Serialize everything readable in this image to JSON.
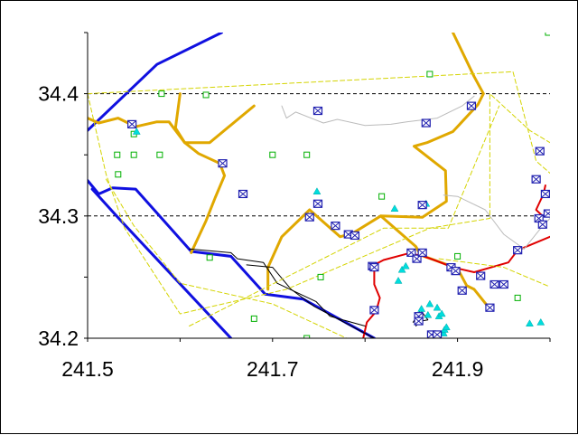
{
  "chart_data": {
    "type": "scatter",
    "title": "",
    "xlabel": "",
    "ylabel": "",
    "xlim": [
      241.5,
      242.0
    ],
    "ylim": [
      34.2,
      34.45
    ],
    "x_ticks": [
      241.5,
      241.7,
      241.9
    ],
    "x_tick_labels": [
      "241.5",
      "241.7",
      "241.9"
    ],
    "y_ticks": [
      34.2,
      34.3,
      34.4
    ],
    "y_tick_labels": [
      "34.2",
      "34.3",
      "34.4"
    ],
    "grid": "dashed at 34.3 and 34.4",
    "colors": {
      "blue_line": "#1010e0",
      "orange_line": "#e0a800",
      "red_line": "#e00000",
      "yellow_dash": "#d4d400",
      "gray_line": "#bbbbbb",
      "black_line": "#000000",
      "green_marker": "#00b000",
      "cyan_marker": "#00dddd",
      "box_marker": "#2020b0"
    },
    "lines": [
      {
        "name": "blue-fault-upper",
        "color": "blue",
        "width": 3,
        "points": [
          [
            241.5,
            34.37
          ],
          [
            241.575,
            34.424
          ],
          [
            241.645,
            34.45
          ]
        ]
      },
      {
        "name": "blue-fault-lower",
        "color": "blue",
        "width": 3,
        "points": [
          [
            241.5,
            34.329
          ],
          [
            241.512,
            34.318
          ],
          [
            241.527,
            34.323
          ],
          [
            241.552,
            34.322
          ],
          [
            241.612,
            34.271
          ],
          [
            241.655,
            34.267
          ],
          [
            241.692,
            34.236
          ],
          [
            241.733,
            34.232
          ],
          [
            241.81,
            34.2
          ]
        ]
      },
      {
        "name": "blue-fault-inner",
        "color": "blue",
        "width": 3,
        "points": [
          [
            241.505,
            34.322
          ],
          [
            241.535,
            34.297
          ],
          [
            241.655,
            34.2
          ]
        ]
      },
      {
        "name": "orange-west",
        "color": "orange",
        "width": 3,
        "points": [
          [
            241.5,
            34.38
          ],
          [
            241.512,
            34.376
          ],
          [
            241.533,
            34.38
          ],
          [
            241.552,
            34.373
          ],
          [
            241.575,
            34.377
          ],
          [
            241.588,
            34.377
          ],
          [
            241.605,
            34.36
          ],
          [
            241.632,
            34.36
          ],
          [
            241.68,
            34.39
          ]
        ]
      },
      {
        "name": "orange-mid",
        "color": "orange",
        "width": 3,
        "points": [
          [
            241.6,
            34.4
          ],
          [
            241.595,
            34.372
          ],
          [
            241.605,
            34.36
          ],
          [
            241.62,
            34.351
          ],
          [
            241.643,
            34.343
          ],
          [
            241.648,
            34.333
          ],
          [
            241.638,
            34.315
          ],
          [
            241.628,
            34.296
          ],
          [
            241.612,
            34.27
          ]
        ]
      },
      {
        "name": "orange-east",
        "color": "orange",
        "width": 3,
        "points": [
          [
            241.895,
            34.45
          ],
          [
            241.918,
            34.414
          ],
          [
            241.928,
            34.4
          ],
          [
            241.922,
            34.391
          ],
          [
            241.895,
            34.369
          ],
          [
            241.867,
            34.36
          ],
          [
            241.853,
            34.357
          ],
          [
            241.887,
            34.337
          ],
          [
            241.888,
            34.312
          ],
          [
            241.862,
            34.299
          ],
          [
            241.817,
            34.3
          ],
          [
            241.787,
            34.286
          ],
          [
            241.773,
            34.283
          ],
          [
            241.74,
            34.305
          ],
          [
            241.71,
            34.283
          ],
          [
            241.695,
            34.258
          ],
          [
            241.695,
            34.24
          ]
        ]
      },
      {
        "name": "orange-south",
        "color": "orange",
        "width": 3,
        "points": [
          [
            241.817,
            34.3
          ],
          [
            241.855,
            34.275
          ],
          [
            241.86,
            34.268
          ],
          [
            241.875,
            34.264
          ],
          [
            241.9,
            34.257
          ],
          [
            241.91,
            34.243
          ],
          [
            241.918,
            34.24
          ],
          [
            241.935,
            34.224
          ]
        ]
      },
      {
        "name": "red-fault",
        "color": "red",
        "width": 2,
        "points": [
          [
            241.798,
            34.2
          ],
          [
            241.802,
            34.213
          ],
          [
            241.812,
            34.222
          ],
          [
            241.816,
            34.233
          ],
          [
            241.81,
            34.244
          ],
          [
            241.81,
            34.26
          ],
          [
            241.82,
            34.264
          ],
          [
            241.845,
            34.269
          ],
          [
            241.86,
            34.268
          ],
          [
            241.878,
            34.263
          ],
          [
            241.895,
            34.258
          ],
          [
            241.918,
            34.254
          ],
          [
            241.955,
            34.262
          ],
          [
            241.965,
            34.272
          ],
          [
            242.0,
            34.283
          ]
        ]
      },
      {
        "name": "red-fault-east",
        "color": "red",
        "width": 2,
        "points": [
          [
            241.992,
            34.3
          ],
          [
            241.985,
            34.305
          ],
          [
            241.993,
            34.318
          ],
          [
            241.995,
            34.325
          ]
        ]
      },
      {
        "name": "gray-road",
        "color": "gray",
        "width": 1,
        "points": [
          [
            241.71,
            34.39
          ],
          [
            241.715,
            34.38
          ],
          [
            241.725,
            34.385
          ],
          [
            241.755,
            34.376
          ],
          [
            241.77,
            34.379
          ],
          [
            241.8,
            34.374
          ],
          [
            241.828,
            34.375
          ],
          [
            241.845,
            34.377
          ],
          [
            241.878,
            34.38
          ],
          [
            241.905,
            34.39
          ],
          [
            241.918,
            34.398
          ]
        ]
      },
      {
        "name": "gray-road-east",
        "color": "gray",
        "width": 1,
        "points": [
          [
            241.885,
            34.317
          ],
          [
            241.9,
            34.316
          ],
          [
            241.93,
            34.305
          ],
          [
            241.95,
            34.285
          ],
          [
            241.972,
            34.273
          ],
          [
            241.99,
            34.29
          ],
          [
            242.0,
            34.298
          ]
        ]
      },
      {
        "name": "black-road",
        "color": "black",
        "width": 1,
        "points": [
          [
            241.61,
            34.273
          ],
          [
            241.655,
            34.27
          ],
          [
            241.662,
            34.265
          ],
          [
            241.69,
            34.262
          ],
          [
            241.705,
            34.245
          ],
          [
            241.747,
            34.23
          ],
          [
            241.762,
            34.218
          ],
          [
            241.8,
            34.21
          ]
        ]
      },
      {
        "name": "black-road-2",
        "color": "black",
        "width": 1,
        "points": [
          [
            241.672,
            34.26
          ],
          [
            241.7,
            34.258
          ],
          [
            241.72,
            34.24
          ],
          [
            241.745,
            34.226
          ],
          [
            241.81,
            34.2
          ]
        ]
      },
      {
        "name": "black-road-3",
        "color": "black",
        "width": 1,
        "points": [
          [
            241.855,
            34.21
          ],
          [
            241.86,
            34.214
          ],
          [
            241.868,
            34.215
          ],
          [
            241.86,
            34.223
          ],
          [
            241.852,
            34.213
          ]
        ]
      },
      {
        "name": "yellow-polygon",
        "color": "yellowdash",
        "width": 1,
        "points": [
          [
            241.5,
            34.4
          ],
          [
            241.96,
            34.418
          ],
          [
            241.985,
            34.345
          ],
          [
            242.0,
            34.335
          ]
        ]
      },
      {
        "name": "yellow-polygon-2",
        "color": "yellowdash",
        "width": 1,
        "points": [
          [
            241.5,
            34.4
          ],
          [
            241.52,
            34.334
          ],
          [
            241.54,
            34.29
          ],
          [
            241.6,
            34.22
          ],
          [
            241.715,
            34.24
          ],
          [
            241.87,
            34.29
          ],
          [
            241.935,
            34.298
          ],
          [
            241.935,
            34.4
          ],
          [
            241.978,
            34.37
          ],
          [
            242.0,
            34.36
          ]
        ]
      },
      {
        "name": "yellow-polygon-3",
        "color": "yellowdash",
        "width": 1,
        "points": [
          [
            241.61,
            34.21
          ],
          [
            241.82,
            34.29
          ],
          [
            241.89,
            34.29
          ],
          [
            241.945,
            34.39
          ]
        ]
      },
      {
        "name": "yellow-polygon-4",
        "color": "yellowdash",
        "width": 1,
        "points": [
          [
            241.88,
            34.265
          ],
          [
            241.95,
            34.258
          ],
          [
            242.0,
            34.242
          ]
        ]
      },
      {
        "name": "yellow-polygon-5",
        "color": "yellowdash",
        "width": 1,
        "points": [
          [
            241.52,
            34.33
          ],
          [
            241.55,
            34.292
          ],
          [
            241.6,
            34.245
          ],
          [
            241.7,
            34.228
          ],
          [
            241.78,
            34.2
          ]
        ]
      }
    ],
    "box_markers": [
      [
        241.548,
        34.375
      ],
      [
        241.646,
        34.343
      ],
      [
        241.668,
        34.318
      ],
      [
        241.74,
        34.299
      ],
      [
        241.749,
        34.386
      ],
      [
        241.749,
        34.31
      ],
      [
        241.768,
        34.292
      ],
      [
        241.782,
        34.285
      ],
      [
        241.789,
        34.284
      ],
      [
        241.808,
        34.259
      ],
      [
        241.81,
        34.258
      ],
      [
        241.81,
        34.223
      ],
      [
        241.85,
        34.27
      ],
      [
        241.856,
        34.265
      ],
      [
        241.858,
        34.218
      ],
      [
        241.858,
        34.214
      ],
      [
        241.862,
        34.309
      ],
      [
        241.862,
        34.27
      ],
      [
        241.866,
        34.376
      ],
      [
        241.872,
        34.203
      ],
      [
        241.878,
        34.203
      ],
      [
        241.893,
        34.258
      ],
      [
        241.898,
        34.255
      ],
      [
        241.905,
        34.239
      ],
      [
        241.915,
        34.39
      ],
      [
        241.925,
        34.251
      ],
      [
        241.935,
        34.225
      ],
      [
        241.94,
        34.244
      ],
      [
        241.95,
        34.244
      ],
      [
        241.965,
        34.272
      ],
      [
        241.985,
        34.33
      ],
      [
        241.988,
        34.298
      ],
      [
        241.989,
        34.353
      ],
      [
        241.992,
        34.293
      ],
      [
        241.995,
        34.318
      ],
      [
        241.998,
        34.302
      ]
    ],
    "green_markers": [
      [
        241.532,
        34.35
      ],
      [
        241.533,
        34.334
      ],
      [
        241.55,
        34.35
      ],
      [
        241.55,
        34.367
      ],
      [
        241.578,
        34.35
      ],
      [
        241.58,
        34.4
      ],
      [
        241.628,
        34.399
      ],
      [
        241.632,
        34.266
      ],
      [
        241.68,
        34.216
      ],
      [
        241.7,
        34.35
      ],
      [
        241.737,
        34.35
      ],
      [
        241.737,
        34.2
      ],
      [
        241.752,
        34.25
      ],
      [
        241.818,
        34.316
      ],
      [
        241.87,
        34.416
      ],
      [
        241.9,
        34.267
      ],
      [
        241.965,
        34.233
      ],
      [
        241.998,
        34.45
      ]
    ],
    "cyan_markers": [
      [
        241.553,
        34.369
      ],
      [
        241.748,
        34.32
      ],
      [
        241.832,
        34.306
      ],
      [
        241.836,
        34.247
      ],
      [
        241.84,
        34.256
      ],
      [
        241.844,
        34.259
      ],
      [
        241.857,
        34.215
      ],
      [
        241.861,
        34.224
      ],
      [
        241.866,
        34.31
      ],
      [
        241.868,
        34.219
      ],
      [
        241.87,
        34.228
      ],
      [
        241.878,
        34.225
      ],
      [
        241.88,
        34.218
      ],
      [
        241.883,
        34.22
      ],
      [
        241.885,
        34.204
      ],
      [
        241.886,
        34.207
      ],
      [
        241.888,
        34.209
      ],
      [
        241.978,
        34.212
      ],
      [
        241.99,
        34.213
      ]
    ]
  }
}
